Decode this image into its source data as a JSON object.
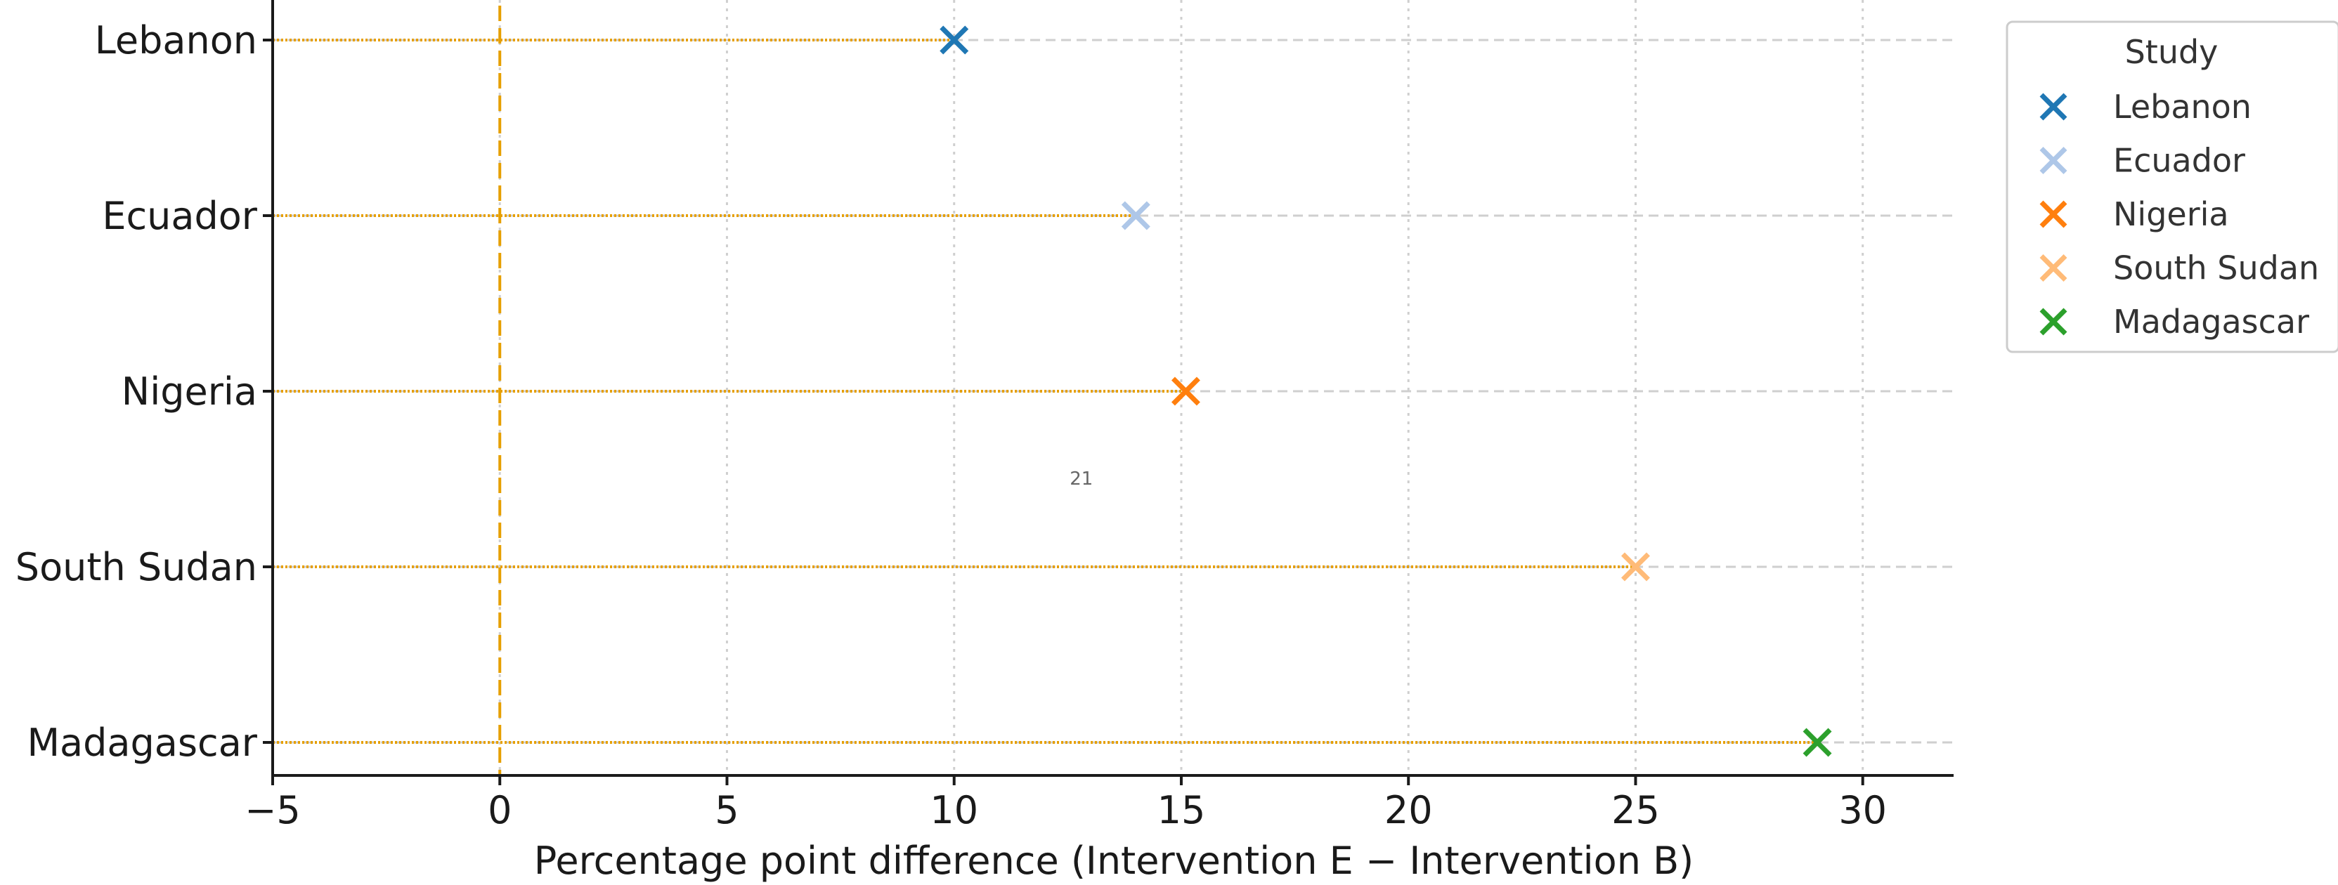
{
  "chart_data": {
    "type": "scatter",
    "title": "",
    "xlabel": "Percentage point difference (Intervention E − Intervention B)",
    "ylabel": "",
    "xlim": [
      -5,
      32
    ],
    "xticks": [
      -5,
      0,
      5,
      10,
      15,
      20,
      25,
      30
    ],
    "xtick_labels": [
      "−5",
      "0",
      "5",
      "10",
      "15",
      "20",
      "25",
      "30"
    ],
    "reference_line_x": 0,
    "reference_line_color": "#e69f00",
    "connector_color": "#e69f00",
    "grid": true,
    "legend": {
      "title": "Study",
      "placement": "top-right, outside plot"
    },
    "series": [
      {
        "name": "Lebanon",
        "x": 10,
        "color": "#1f77b4"
      },
      {
        "name": "Ecuador",
        "x": 14,
        "color": "#aec7e8"
      },
      {
        "name": "Nigeria",
        "x": 15.1,
        "color": "#ff7f0e"
      },
      {
        "name": "South Sudan",
        "x": 25,
        "color": "#ffbb78"
      },
      {
        "name": "Madagascar",
        "x": 29,
        "color": "#2ca02c"
      }
    ],
    "annotations": [
      {
        "text": "21",
        "x": 12.8,
        "y_between": [
          "Nigeria",
          "South Sudan"
        ]
      }
    ]
  }
}
